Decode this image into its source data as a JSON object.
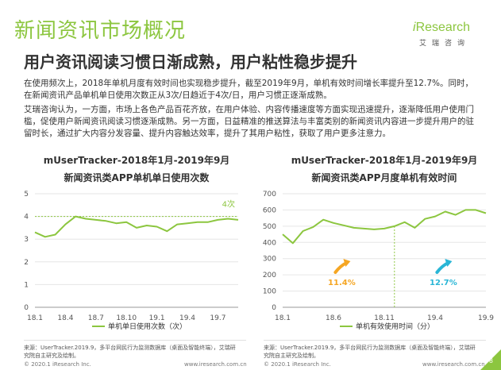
{
  "section_title": "新闻资讯市场概况",
  "logo": {
    "word_i": "i",
    "word_rest": "Research",
    "sub": "艾瑞咨询"
  },
  "headline": "用户资讯阅读习惯日渐成熟，用户粘性稳步提升",
  "paragraphs": [
    "在使用频次上，2018年单机月度有效时间也实现稳步提升，截至2019年9月，单机有效时间增长率提升至12.7%。同时，在新闻资讯产品单机单日使用次数正从3次/日趋近于4次/日，用户习惯正逐渐成熟。",
    "艾瑞咨询认为，一方面，市场上各色产品百花齐放，在用户体验、内容传播速度等方面实现迅速提升，逐渐降低用户使用门槛，促使用户新闻资讯阅读习惯逐渐成熟。另一方面，日益精准的推送算法与丰富类别的新闻资讯内容进一步提升用户的驻留时长，通过扩大内容分发容量、提升内容触达效率，提升了其用户粘性，获取了用户更多注意力。"
  ],
  "colors": {
    "accent": "#8cc63f",
    "arrow_orange": "#f5a623",
    "arrow_blue": "#29b6d6",
    "grid": "#e6e6e6",
    "axis": "#999999"
  },
  "chart_data": [
    {
      "type": "line",
      "title": "mUserTracker-2018年1月-2019年9月",
      "subtitle": "新闻资讯类APP单机单日使用次数",
      "x": [
        "18.1",
        "18.2",
        "18.3",
        "18.4",
        "18.5",
        "18.6",
        "18.7",
        "18.8",
        "18.9",
        "18.10",
        "18.11",
        "18.12",
        "19.1",
        "19.2",
        "19.3",
        "19.4",
        "19.5",
        "19.6",
        "19.7",
        "19.8",
        "19.9"
      ],
      "xticks": [
        "18.1",
        "18.4",
        "18.7",
        "18.10",
        "19.1",
        "19.4",
        "19.7"
      ],
      "ylim": [
        0,
        5
      ],
      "yticks": [
        0,
        1,
        2,
        3,
        4,
        5
      ],
      "series": [
        {
          "name": "单机单日使用次数（次）",
          "values": [
            3.3,
            3.1,
            3.2,
            3.65,
            4.0,
            3.9,
            3.85,
            3.8,
            3.7,
            3.75,
            3.5,
            3.6,
            3.55,
            3.35,
            3.65,
            3.7,
            3.75,
            3.75,
            3.85,
            3.9,
            3.85
          ]
        }
      ],
      "reference_line": {
        "value": 4,
        "label": "4次"
      },
      "legend": "bottom",
      "grid": true
    },
    {
      "type": "line",
      "title": "mUserTracker-2018年1月-2019年9月",
      "subtitle": "新闻资讯类APP月度单机有效时间",
      "x": [
        "18.1",
        "18.2",
        "18.3",
        "18.4",
        "18.5",
        "18.6",
        "18.7",
        "18.8",
        "18.9",
        "18.10",
        "18.11",
        "18.12",
        "19.1",
        "19.2",
        "19.3",
        "19.4",
        "19.5",
        "19.6",
        "19.7",
        "19.8",
        "19.9"
      ],
      "xticks": [
        "18.1",
        "18.6",
        "18.11",
        "19.4",
        "19.9"
      ],
      "ylim": [
        0,
        700
      ],
      "yticks": [
        0,
        100,
        200,
        300,
        400,
        500,
        600,
        700
      ],
      "series": [
        {
          "name": "单机有效使用时间（分）",
          "values": [
            450,
            395,
            470,
            495,
            540,
            520,
            505,
            490,
            485,
            480,
            485,
            500,
            525,
            490,
            545,
            560,
            590,
            570,
            600,
            600,
            580
          ]
        }
      ],
      "divider_at": "18.12",
      "annotations": [
        {
          "label": "11.4%",
          "color": "orange"
        },
        {
          "label": "12.7%",
          "color": "blue"
        }
      ],
      "legend": "bottom",
      "grid": true
    }
  ],
  "sources": [
    "来源：UserTracker.2019.9，多平台网民行为监测数据库（桌面及智能终端），艾瑞研究院自主研究及绘制。",
    "来源：UserTracker.2019.9，多平台网民行为监测数据库（桌面及智能终端），艾瑞研究院自主研究及绘制。"
  ],
  "footer": {
    "copyright": "© 2020.1 iResearch Inc.",
    "url": "www.iresearch.com.cn",
    "page": "8"
  }
}
